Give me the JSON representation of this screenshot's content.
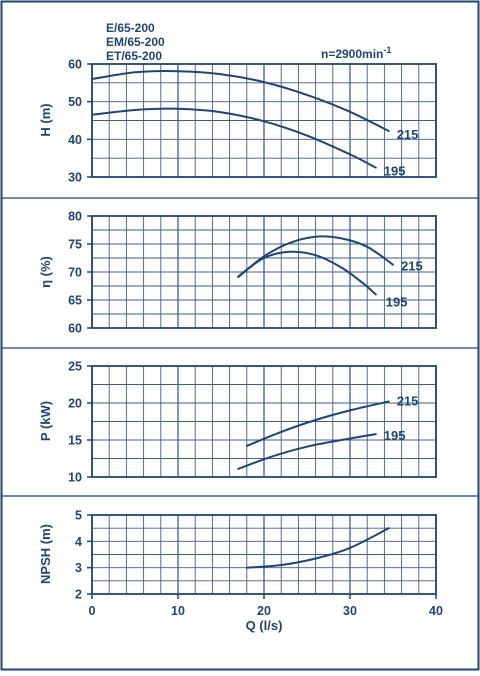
{
  "header": {
    "models": [
      "E/65-200",
      "EM/65-200",
      "ET/65-200"
    ],
    "speed_prefix": "n=2900min",
    "speed_exponent": "-1"
  },
  "colors": {
    "ink": "#1f4575",
    "grid": "#3a5f8f",
    "frame": "#1f4575",
    "background": "#ffffff"
  },
  "chart_data": [
    {
      "type": "line",
      "ylabel": "H (m)",
      "xlim": [
        0,
        40
      ],
      "ylim": [
        30,
        60
      ],
      "yticks": [
        30,
        40,
        50,
        60
      ],
      "grid": true,
      "series": [
        {
          "name": "215",
          "x": [
            0,
            5,
            10,
            15,
            20,
            25,
            30,
            34.5
          ],
          "y": [
            56,
            57.8,
            58.1,
            57.3,
            55.2,
            51.8,
            47.3,
            42.2
          ]
        },
        {
          "name": "195",
          "x": [
            0,
            5,
            10,
            15,
            20,
            25,
            30,
            33
          ],
          "y": [
            46.5,
            47.8,
            48.1,
            47.2,
            44.8,
            41.0,
            36.0,
            32.5
          ]
        }
      ]
    },
    {
      "type": "line",
      "ylabel": "η (%)",
      "xlim": [
        0,
        40
      ],
      "ylim": [
        60,
        80
      ],
      "yticks": [
        60,
        65,
        70,
        75,
        80
      ],
      "grid": true,
      "series": [
        {
          "name": "215",
          "x": [
            17,
            20,
            23,
            26,
            29,
            32,
            35
          ],
          "y": [
            69.1,
            72.8,
            75.2,
            76.3,
            76.0,
            74.5,
            71.3
          ]
        },
        {
          "name": "195",
          "x": [
            17,
            20,
            23,
            26,
            29,
            31.5,
            33
          ],
          "y": [
            69.2,
            72.5,
            73.6,
            73.0,
            70.8,
            68.0,
            66.0
          ]
        }
      ]
    },
    {
      "type": "line",
      "ylabel": "P (kW)",
      "xlim": [
        0,
        40
      ],
      "ylim": [
        10,
        25
      ],
      "yticks": [
        10,
        15,
        20,
        25
      ],
      "grid": true,
      "series": [
        {
          "name": "215",
          "x": [
            18,
            22,
            26,
            30,
            34.5
          ],
          "y": [
            14.2,
            16.1,
            17.7,
            19.0,
            20.2
          ]
        },
        {
          "name": "195",
          "x": [
            17,
            21,
            25,
            29,
            33
          ],
          "y": [
            11.1,
            12.8,
            14.1,
            15.0,
            15.8
          ]
        }
      ]
    },
    {
      "type": "line",
      "ylabel": "NPSH (m)",
      "xlabel": "Q (l/s)",
      "xlim": [
        0,
        40
      ],
      "ylim": [
        2,
        5
      ],
      "xticks": [
        0,
        10,
        20,
        30,
        40
      ],
      "yticks": [
        2,
        3,
        4,
        5
      ],
      "grid": true,
      "series": [
        {
          "x": [
            18,
            22,
            26,
            30,
            34.5
          ],
          "y": [
            3.0,
            3.1,
            3.35,
            3.75,
            4.5
          ]
        }
      ]
    }
  ]
}
